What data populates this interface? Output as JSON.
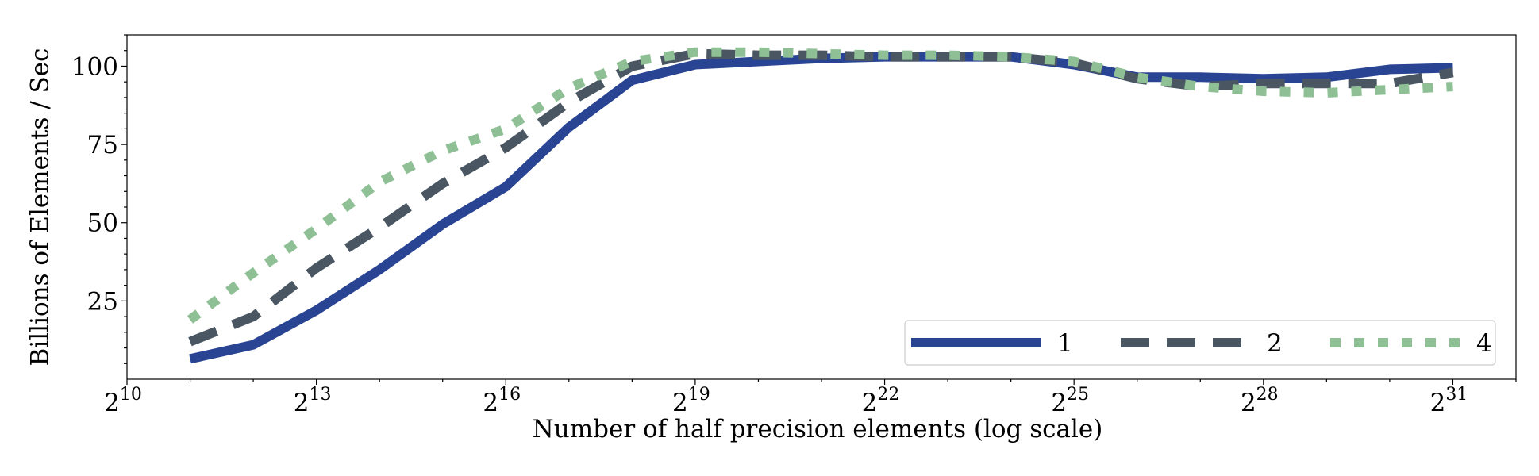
{
  "chart_data": {
    "type": "line",
    "title": "",
    "xlabel": "Number of half precision elements (log scale)",
    "ylabel": "Billions of Elements / Sec",
    "x_scale": "log2",
    "x_exponent_range": [
      10,
      32
    ],
    "ylim": [
      0,
      110
    ],
    "xticks": [
      {
        "base": "2",
        "exp": "10",
        "value": 10
      },
      {
        "base": "2",
        "exp": "13",
        "value": 13
      },
      {
        "base": "2",
        "exp": "16",
        "value": 16
      },
      {
        "base": "2",
        "exp": "19",
        "value": 19
      },
      {
        "base": "2",
        "exp": "22",
        "value": 22
      },
      {
        "base": "2",
        "exp": "25",
        "value": 25
      },
      {
        "base": "2",
        "exp": "28",
        "value": 28
      },
      {
        "base": "2",
        "exp": "31",
        "value": 31
      }
    ],
    "yticks": [
      25,
      50,
      75,
      100
    ],
    "legend": {
      "placement": "lower-right",
      "columns": 3
    },
    "series": [
      {
        "name": "1",
        "color": "#2a4494",
        "style": "solid",
        "x_exponents": [
          11,
          12,
          13,
          14,
          15,
          16,
          17,
          18,
          19,
          20,
          21,
          22,
          23,
          24,
          25,
          26,
          27,
          28,
          29,
          30,
          31
        ],
        "values": [
          6.5,
          11,
          22,
          35,
          49.5,
          61.5,
          80.5,
          95.5,
          100.5,
          101.5,
          102.5,
          103,
          103,
          103,
          100.5,
          96.5,
          96.5,
          96,
          96.5,
          99,
          99.5
        ]
      },
      {
        "name": "2",
        "color": "#4a5763",
        "style": "dashed",
        "x_exponents": [
          11,
          12,
          13,
          14,
          15,
          16,
          17,
          18,
          19,
          20,
          21,
          22,
          23,
          24,
          25,
          26,
          27,
          28,
          29,
          30,
          31
        ],
        "values": [
          12,
          20,
          35.5,
          48.5,
          62.5,
          74,
          88.5,
          100,
          104,
          103.5,
          103.5,
          103,
          103,
          103,
          101,
          96,
          93.5,
          94.5,
          94.5,
          94.5,
          98
        ]
      },
      {
        "name": "4",
        "color": "#8fc095",
        "style": "dotted",
        "x_exponents": [
          11,
          12,
          13,
          14,
          15,
          16,
          17,
          18,
          19,
          20,
          21,
          22,
          23,
          24,
          25,
          26,
          27,
          28,
          29,
          30,
          31
        ],
        "values": [
          19,
          34,
          48,
          63,
          73,
          80,
          93,
          101.5,
          104.5,
          104.5,
          104,
          103.5,
          103.5,
          103,
          101.5,
          96.5,
          93.5,
          92,
          91.5,
          92.5,
          93.5
        ]
      }
    ]
  }
}
